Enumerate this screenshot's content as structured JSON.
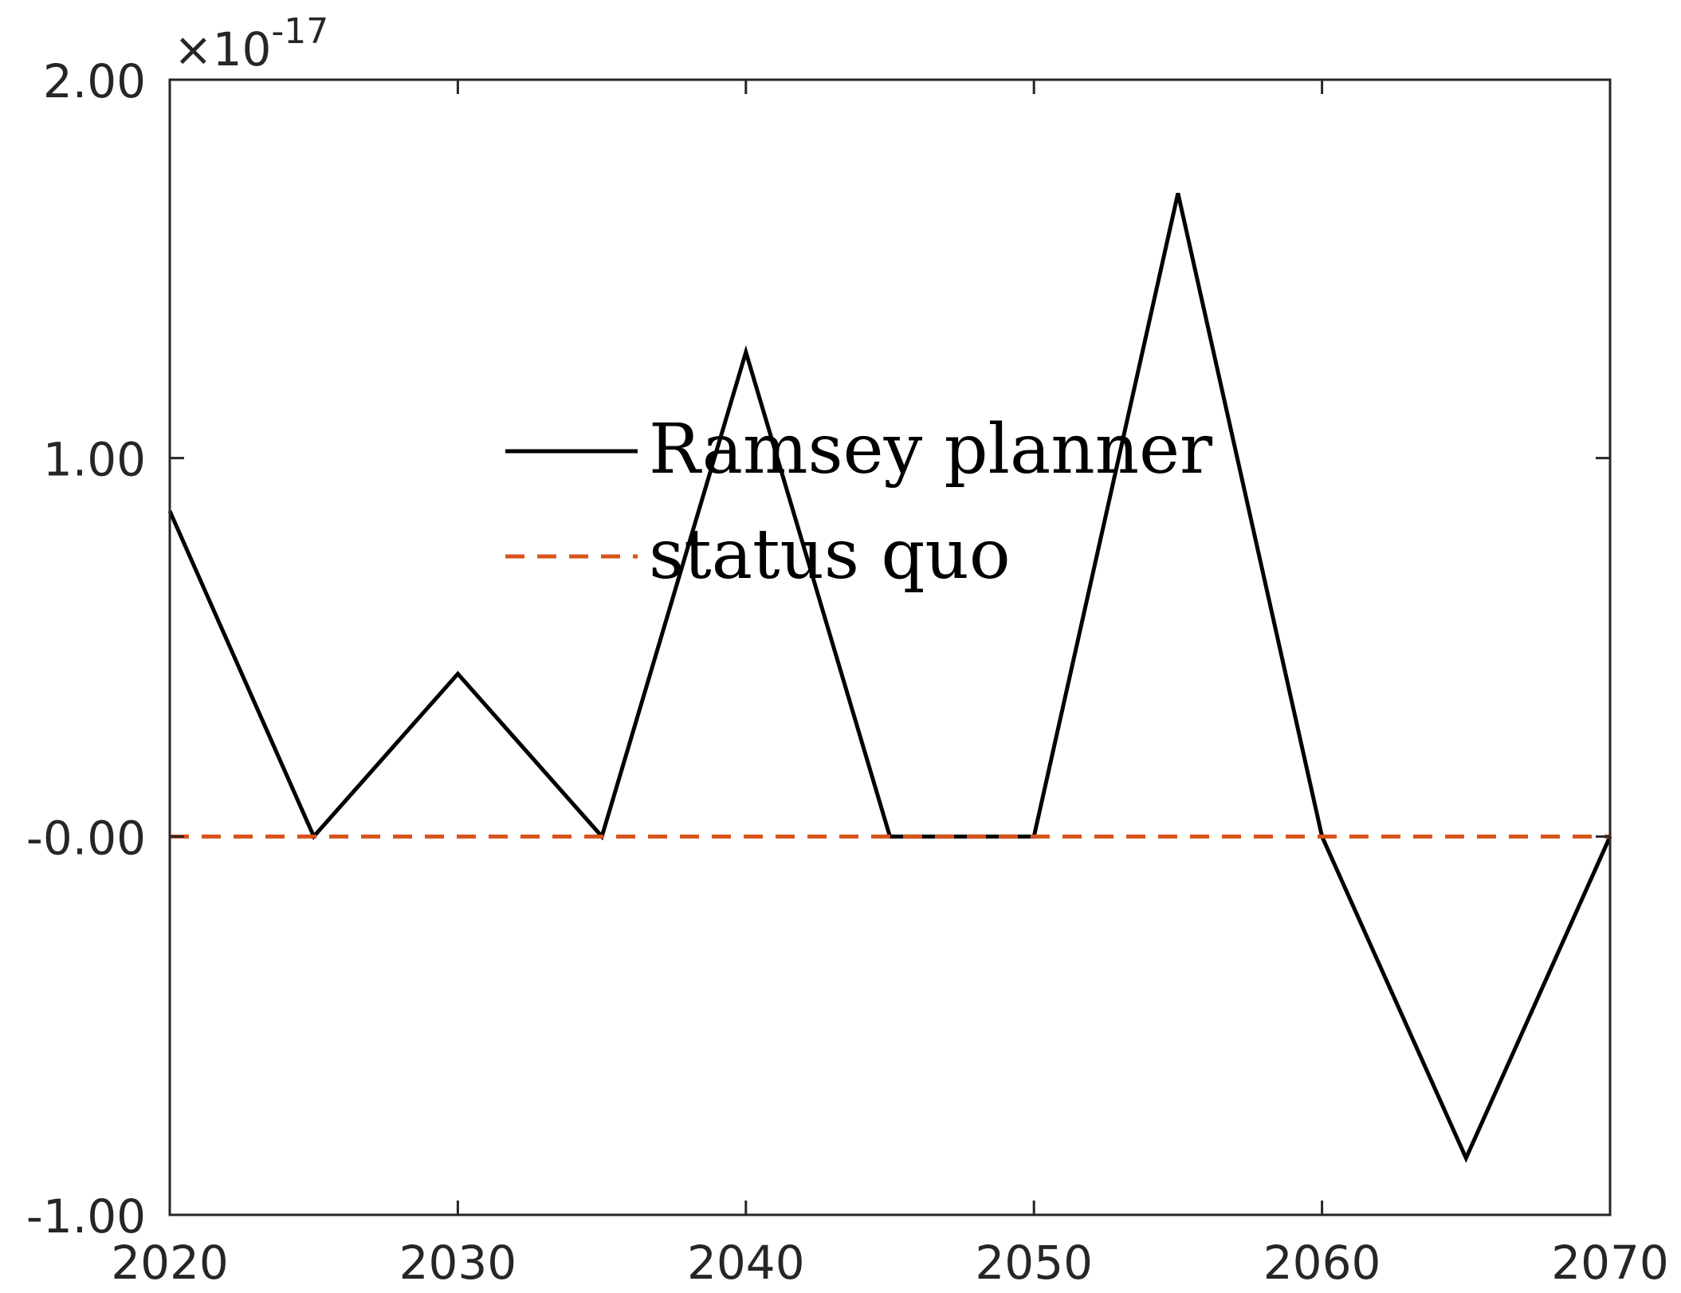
{
  "chart_data": {
    "type": "line",
    "title": "",
    "xlabel": "",
    "ylabel": "",
    "xlim": [
      2020,
      2070
    ],
    "ylim": [
      -1.0,
      2.0
    ],
    "y_multiplier_label": {
      "base": "×10",
      "exponent": "-17"
    },
    "x_ticks": [
      2020,
      2030,
      2040,
      2050,
      2060,
      2070
    ],
    "x_tick_labels": [
      "2020",
      "2030",
      "2040",
      "2050",
      "2060",
      "2070"
    ],
    "y_ticks": [
      2.0,
      1.0,
      0.0,
      -1.0
    ],
    "y_tick_labels": [
      "2.00",
      "1.00",
      "-0.00",
      "-1.00"
    ],
    "grid": false,
    "legend_position": "center",
    "series": [
      {
        "name": "Ramsey planner",
        "color": "#000000",
        "style": "solid",
        "x": [
          2020,
          2025,
          2030,
          2035,
          2040,
          2045,
          2050,
          2055,
          2060,
          2065,
          2070
        ],
        "y": [
          0.86,
          0.0,
          0.43,
          0.0,
          1.28,
          0.0,
          0.0,
          1.7,
          0.0,
          -0.85,
          0.0
        ]
      },
      {
        "name": "status quo",
        "color": "#D95319",
        "style": "dashed",
        "x": [
          2020,
          2025,
          2030,
          2035,
          2040,
          2045,
          2050,
          2055,
          2060,
          2065,
          2070
        ],
        "y": [
          0,
          0,
          0,
          0,
          0,
          0,
          0,
          0,
          0,
          0,
          0
        ]
      }
    ]
  }
}
